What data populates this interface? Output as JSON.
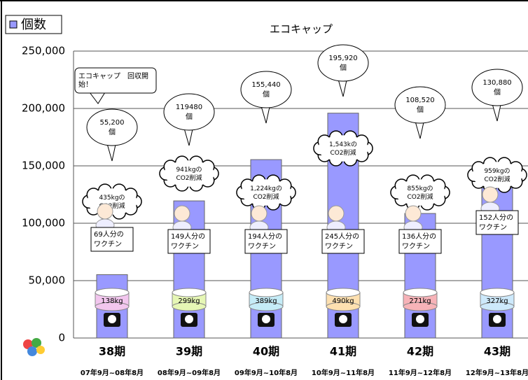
{
  "chart_data": {
    "type": "bar",
    "title": "エコキャップ",
    "categories": [
      "38期",
      "39期",
      "40期",
      "41期",
      "42期",
      "43期"
    ],
    "periods": [
      "07年9月~08年8月",
      "08年9月~09年8月",
      "09年9月~10年8月",
      "10年9月~11年8月",
      "11年9月~12年8月",
      "12年9月~13年8月"
    ],
    "series": [
      {
        "name": "個数",
        "color": "#9999ff",
        "values": [
          55200,
          119480,
          155440,
          195920,
          108520,
          130880
        ],
        "value_labels": [
          "55,200\n個",
          "119480\n個",
          "155,440\n個",
          "195,920\n個",
          "108,520\n個",
          "130,880\n個"
        ]
      }
    ],
    "co2_labels": [
      "435kgの\nCO2削減",
      "941kgの\nCO2削減",
      "1,224kgの\nCO2削減",
      "1,543kの\nCO2削減",
      "855kgの\nCO2削減",
      "959kgの\nCO2削減"
    ],
    "vaccine_labels": [
      "69人分の\nワクチン",
      "149人分の\nワクチン",
      "194人分の\nワクチン",
      "245人分の\nワクチン",
      "136人分の\nワクチン",
      "152人分の\nワクチン"
    ],
    "weight_labels": [
      "138kg",
      "299kg",
      "389kg",
      "490kg",
      "271kg",
      "327kg"
    ],
    "note": "エコキャップ　回収開\n始！",
    "ylim": [
      0,
      250000
    ],
    "yticks": [
      0,
      {
        "value": 50000,
        "label": "50,000"
      },
      {
        "value": 100000,
        "label": "100,000"
      },
      {
        "value": 150000,
        "label": "150,000"
      },
      {
        "value": 200000,
        "label": "200,000"
      },
      {
        "value": 250000,
        "label": "250,000"
      }
    ],
    "grid": true
  }
}
